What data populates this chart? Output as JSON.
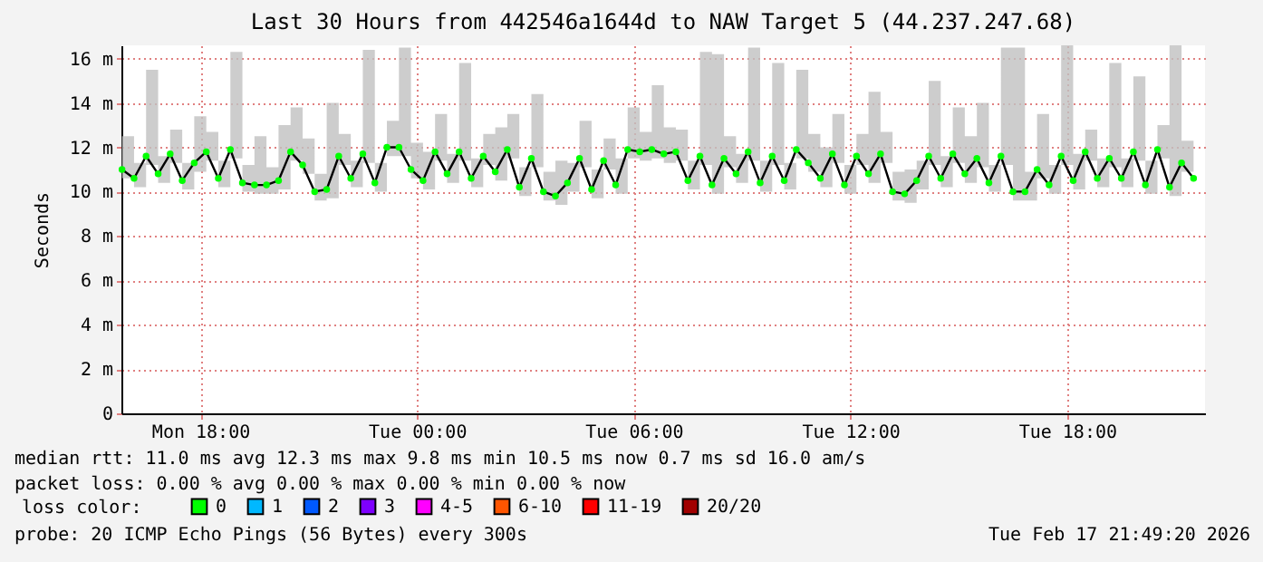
{
  "chart_data": {
    "type": "line",
    "title": "Last 30 Hours from 442546a1644d to NAW Target 5 (44.237.247.68)",
    "ylabel": "Seconds",
    "legend_title": "loss color:",
    "x": [
      "2026-02-16T15:50",
      "2026-02-16T16:10",
      "2026-02-16T16:30",
      "2026-02-16T16:50",
      "2026-02-16T17:10",
      "2026-02-16T17:30",
      "2026-02-16T17:50",
      "2026-02-16T18:10",
      "2026-02-16T18:30",
      "2026-02-16T18:50",
      "2026-02-16T19:10",
      "2026-02-16T19:30",
      "2026-02-16T19:50",
      "2026-02-16T20:10",
      "2026-02-16T20:30",
      "2026-02-16T20:50",
      "2026-02-16T21:10",
      "2026-02-16T21:30",
      "2026-02-16T21:50",
      "2026-02-16T22:10",
      "2026-02-16T22:30",
      "2026-02-16T22:50",
      "2026-02-16T23:10",
      "2026-02-16T23:30",
      "2026-02-16T23:50",
      "2026-02-17T00:10",
      "2026-02-17T00:30",
      "2026-02-17T00:50",
      "2026-02-17T01:10",
      "2026-02-17T01:30",
      "2026-02-17T01:50",
      "2026-02-17T02:10",
      "2026-02-17T02:30",
      "2026-02-17T02:50",
      "2026-02-17T03:10",
      "2026-02-17T03:30",
      "2026-02-17T03:50",
      "2026-02-17T04:10",
      "2026-02-17T04:30",
      "2026-02-17T04:50",
      "2026-02-17T05:10",
      "2026-02-17T05:30",
      "2026-02-17T05:50",
      "2026-02-17T06:10",
      "2026-02-17T06:30",
      "2026-02-17T06:50",
      "2026-02-17T07:10",
      "2026-02-17T07:30",
      "2026-02-17T07:50",
      "2026-02-17T08:10",
      "2026-02-17T08:30",
      "2026-02-17T08:50",
      "2026-02-17T09:10",
      "2026-02-17T09:30",
      "2026-02-17T09:50",
      "2026-02-17T10:10",
      "2026-02-17T10:30",
      "2026-02-17T10:50",
      "2026-02-17T11:10",
      "2026-02-17T11:30",
      "2026-02-17T11:50",
      "2026-02-17T12:10",
      "2026-02-17T12:30",
      "2026-02-17T12:50",
      "2026-02-17T13:10",
      "2026-02-17T13:30",
      "2026-02-17T13:50",
      "2026-02-17T14:10",
      "2026-02-17T14:30",
      "2026-02-17T14:50",
      "2026-02-17T15:10",
      "2026-02-17T15:30",
      "2026-02-17T15:50",
      "2026-02-17T16:10",
      "2026-02-17T16:30",
      "2026-02-17T16:50",
      "2026-02-17T17:10",
      "2026-02-17T17:30",
      "2026-02-17T17:50",
      "2026-02-17T18:10",
      "2026-02-17T18:30",
      "2026-02-17T18:50",
      "2026-02-17T19:10",
      "2026-02-17T19:30",
      "2026-02-17T19:50",
      "2026-02-17T20:10",
      "2026-02-17T20:30",
      "2026-02-17T20:50",
      "2026-02-17T21:10",
      "2026-02-17T21:30"
    ],
    "series": [
      {
        "color": "#000000",
        "marker": "none",
        "values": [
          11.0,
          10.6,
          11.6,
          10.8,
          11.7,
          10.5,
          11.3,
          11.8,
          10.6,
          11.9,
          10.4,
          10.3,
          10.3,
          10.5,
          11.8,
          11.2,
          10.0,
          10.1,
          11.6,
          10.6,
          11.7,
          10.4,
          12.0,
          12.0,
          11.0,
          10.5,
          11.8,
          10.8,
          11.8,
          10.6,
          11.6,
          10.9,
          11.9,
          10.2,
          11.5,
          10.0,
          9.8,
          10.4,
          11.5,
          10.1,
          11.4,
          10.3,
          11.9,
          11.8,
          11.9,
          11.7,
          11.8,
          10.5,
          11.6,
          10.3,
          11.5,
          10.8,
          11.8,
          10.4,
          11.6,
          10.5,
          11.9,
          11.3,
          10.6,
          11.7,
          10.3,
          11.6,
          10.8,
          11.7,
          10.0,
          9.9,
          10.5,
          11.6,
          10.6,
          11.7,
          10.8,
          11.5,
          10.4,
          11.6,
          10.0,
          10.0,
          11.0,
          10.3,
          11.6,
          10.5,
          11.8,
          10.6,
          11.5,
          10.6,
          11.8,
          10.3,
          11.9,
          10.2,
          11.3,
          10.6
        ],
        "lower": [
          10.6,
          10.2,
          11.2,
          10.4,
          11.3,
          10.1,
          10.9,
          11.4,
          10.2,
          11.5,
          10.0,
          9.9,
          9.9,
          10.1,
          11.4,
          10.8,
          9.6,
          9.7,
          11.2,
          10.2,
          11.3,
          10.0,
          11.6,
          11.6,
          10.6,
          10.1,
          11.4,
          10.4,
          11.4,
          10.2,
          11.2,
          10.5,
          11.5,
          9.8,
          11.1,
          9.6,
          9.4,
          10.0,
          11.1,
          9.7,
          11.0,
          9.9,
          11.5,
          11.4,
          11.5,
          11.3,
          11.4,
          10.1,
          11.2,
          9.9,
          11.1,
          10.4,
          11.4,
          10.0,
          11.2,
          10.1,
          11.5,
          10.9,
          10.2,
          11.3,
          9.9,
          11.2,
          10.4,
          11.3,
          9.6,
          9.5,
          10.1,
          11.2,
          10.2,
          11.3,
          10.4,
          11.1,
          10.0,
          11.2,
          9.6,
          9.6,
          10.6,
          9.9,
          11.2,
          10.1,
          11.4,
          10.2,
          11.1,
          10.2,
          11.4,
          9.9,
          11.5,
          9.8,
          10.9,
          10.2
        ],
        "upper": [
          12.5,
          11.3,
          15.5,
          11.6,
          12.8,
          11.3,
          13.4,
          12.7,
          11.4,
          16.3,
          11.2,
          12.5,
          11.1,
          13.0,
          13.8,
          12.4,
          10.8,
          14.0,
          12.6,
          11.4,
          16.4,
          11.3,
          13.2,
          16.5,
          12.2,
          11.8,
          13.5,
          11.7,
          15.8,
          11.5,
          12.6,
          12.9,
          13.5,
          11.1,
          14.4,
          10.9,
          11.4,
          11.3,
          13.2,
          11.0,
          12.4,
          11.5,
          13.8,
          12.7,
          14.8,
          12.9,
          12.8,
          11.4,
          16.3,
          16.2,
          12.5,
          11.7,
          16.5,
          11.4,
          15.8,
          11.3,
          15.5,
          12.6,
          12.0,
          13.5,
          11.2,
          12.6,
          14.5,
          12.7,
          10.9,
          11.0,
          11.4,
          15.0,
          11.6,
          13.8,
          12.5,
          14.0,
          11.2,
          16.5,
          16.5,
          10.9,
          13.5,
          11.2,
          16.6,
          11.7,
          12.8,
          11.5,
          15.8,
          11.5,
          15.2,
          11.4,
          13.0,
          16.6,
          12.3,
          11.5
        ]
      },
      {
        "type": "scatter",
        "name": "0",
        "color": "#00ff00",
        "values": [
          11.0,
          10.6,
          11.6,
          10.8,
          11.7,
          10.5,
          11.3,
          11.8,
          10.6,
          11.9,
          10.4,
          10.3,
          10.3,
          10.5,
          11.8,
          11.2,
          10.0,
          10.1,
          11.6,
          10.6,
          11.7,
          10.4,
          12.0,
          12.0,
          11.0,
          10.5,
          11.8,
          10.8,
          11.8,
          10.6,
          11.6,
          10.9,
          11.9,
          10.2,
          11.5,
          10.0,
          9.8,
          10.4,
          11.5,
          10.1,
          11.4,
          10.3,
          11.9,
          11.8,
          11.9,
          11.7,
          11.8,
          10.5,
          11.6,
          10.3,
          11.5,
          10.8,
          11.8,
          10.4,
          11.6,
          10.5,
          11.9,
          11.3,
          10.6,
          11.7,
          10.3,
          11.6,
          10.8,
          11.7,
          10.0,
          9.9,
          10.5,
          11.6,
          10.6,
          11.7,
          10.8,
          11.5,
          10.4,
          11.6,
          10.0,
          10.0,
          11.0,
          10.3,
          11.6,
          10.5,
          11.8,
          10.6,
          11.5,
          10.6,
          11.8,
          10.3,
          11.9,
          10.2,
          11.3,
          10.6
        ]
      },
      {
        "type": "scatter",
        "name": "1",
        "color": "#00b8ff",
        "values": [
          null,
          null,
          null,
          null,
          null,
          null,
          null,
          null,
          null,
          null,
          null,
          null,
          null,
          null,
          null,
          null,
          null,
          null,
          null,
          null,
          null,
          null,
          null,
          null,
          null,
          null,
          null,
          null,
          null,
          null,
          null,
          null,
          null,
          null,
          null,
          null,
          null,
          null,
          null,
          null,
          null,
          null,
          null,
          null,
          null,
          null,
          null,
          null,
          null,
          null,
          null,
          null,
          null,
          null,
          null,
          null,
          null,
          null,
          null,
          null,
          null,
          null,
          null,
          null,
          null,
          null,
          null,
          null,
          null,
          null,
          null,
          null,
          null,
          null,
          null,
          null,
          null,
          null,
          null,
          null,
          null,
          null,
          null,
          null,
          null,
          null,
          null,
          null,
          null,
          null
        ]
      },
      {
        "type": "scatter",
        "name": "2",
        "color": "#0059ff",
        "values": [
          null,
          null,
          null,
          null,
          null,
          null,
          null,
          null,
          null,
          null,
          null,
          null,
          null,
          null,
          null,
          null,
          null,
          null,
          null,
          null,
          null,
          null,
          null,
          null,
          null,
          null,
          null,
          null,
          null,
          null,
          null,
          null,
          null,
          null,
          null,
          null,
          null,
          null,
          null,
          null,
          null,
          null,
          null,
          null,
          null,
          null,
          null,
          null,
          null,
          null,
          null,
          null,
          null,
          null,
          null,
          null,
          null,
          null,
          null,
          null,
          null,
          null,
          null,
          null,
          null,
          null,
          null,
          null,
          null,
          null,
          null,
          null,
          null,
          null,
          null,
          null,
          null,
          null,
          null,
          null,
          null,
          null,
          null,
          null,
          null,
          null,
          null,
          null,
          null,
          null
        ]
      },
      {
        "type": "scatter",
        "name": "3",
        "color": "#7e00ff",
        "values": [
          null,
          null,
          null,
          null,
          null,
          null,
          null,
          null,
          null,
          null,
          null,
          null,
          null,
          null,
          null,
          null,
          null,
          null,
          null,
          null,
          null,
          null,
          null,
          null,
          null,
          null,
          null,
          null,
          null,
          null,
          null,
          null,
          null,
          null,
          null,
          null,
          null,
          null,
          null,
          null,
          null,
          null,
          null,
          null,
          null,
          null,
          null,
          null,
          null,
          null,
          null,
          null,
          null,
          null,
          null,
          null,
          null,
          null,
          null,
          null,
          null,
          null,
          null,
          null,
          null,
          null,
          null,
          null,
          null,
          null,
          null,
          null,
          null,
          null,
          null,
          null,
          null,
          null,
          null,
          null,
          null,
          null,
          null,
          null,
          null,
          null,
          null,
          null,
          null,
          null
        ]
      },
      {
        "type": "scatter",
        "name": "4-5",
        "color": "#ff00ff",
        "values": [
          null,
          null,
          null,
          null,
          null,
          null,
          null,
          null,
          null,
          null,
          null,
          null,
          null,
          null,
          null,
          null,
          null,
          null,
          null,
          null,
          null,
          null,
          null,
          null,
          null,
          null,
          null,
          null,
          null,
          null,
          null,
          null,
          null,
          null,
          null,
          null,
          null,
          null,
          null,
          null,
          null,
          null,
          null,
          null,
          null,
          null,
          null,
          null,
          null,
          null,
          null,
          null,
          null,
          null,
          null,
          null,
          null,
          null,
          null,
          null,
          null,
          null,
          null,
          null,
          null,
          null,
          null,
          null,
          null,
          null,
          null,
          null,
          null,
          null,
          null,
          null,
          null,
          null,
          null,
          null,
          null,
          null,
          null,
          null,
          null,
          null,
          null,
          null,
          null,
          null
        ]
      },
      {
        "type": "scatter",
        "name": "6-10",
        "color": "#ff5500",
        "values": [
          null,
          null,
          null,
          null,
          null,
          null,
          null,
          null,
          null,
          null,
          null,
          null,
          null,
          null,
          null,
          null,
          null,
          null,
          null,
          null,
          null,
          null,
          null,
          null,
          null,
          null,
          null,
          null,
          null,
          null,
          null,
          null,
          null,
          null,
          null,
          null,
          null,
          null,
          null,
          null,
          null,
          null,
          null,
          null,
          null,
          null,
          null,
          null,
          null,
          null,
          null,
          null,
          null,
          null,
          null,
          null,
          null,
          null,
          null,
          null,
          null,
          null,
          null,
          null,
          null,
          null,
          null,
          null,
          null,
          null,
          null,
          null,
          null,
          null,
          null,
          null,
          null,
          null,
          null,
          null,
          null,
          null,
          null,
          null,
          null,
          null,
          null,
          null,
          null,
          null
        ]
      },
      {
        "type": "scatter",
        "name": "11-19",
        "color": "#ff0000",
        "values": [
          null,
          null,
          null,
          null,
          null,
          null,
          null,
          null,
          null,
          null,
          null,
          null,
          null,
          null,
          null,
          null,
          null,
          null,
          null,
          null,
          null,
          null,
          null,
          null,
          null,
          null,
          null,
          null,
          null,
          null,
          null,
          null,
          null,
          null,
          null,
          null,
          null,
          null,
          null,
          null,
          null,
          null,
          null,
          null,
          null,
          null,
          null,
          null,
          null,
          null,
          null,
          null,
          null,
          null,
          null,
          null,
          null,
          null,
          null,
          null,
          null,
          null,
          null,
          null,
          null,
          null,
          null,
          null,
          null,
          null,
          null,
          null,
          null,
          null,
          null,
          null,
          null,
          null,
          null,
          null,
          null,
          null,
          null,
          null,
          null,
          null,
          null,
          null,
          null,
          null
        ]
      },
      {
        "type": "scatter",
        "name": "20/20",
        "color": "#a10000",
        "values": [
          null,
          null,
          null,
          null,
          null,
          null,
          null,
          null,
          null,
          null,
          null,
          null,
          null,
          null,
          null,
          null,
          null,
          null,
          null,
          null,
          null,
          null,
          null,
          null,
          null,
          null,
          null,
          null,
          null,
          null,
          null,
          null,
          null,
          null,
          null,
          null,
          null,
          null,
          null,
          null,
          null,
          null,
          null,
          null,
          null,
          null,
          null,
          null,
          null,
          null,
          null,
          null,
          null,
          null,
          null,
          null,
          null,
          null,
          null,
          null,
          null,
          null,
          null,
          null,
          null,
          null,
          null,
          null,
          null,
          null,
          null,
          null,
          null,
          null,
          null,
          null,
          null,
          null,
          null,
          null,
          null,
          null,
          null,
          null,
          null,
          null,
          null,
          null,
          null,
          null
        ]
      }
    ],
    "marker": "circle",
    "xlim": [
      "2026-02-16T15:49",
      "2026-02-17T21:49"
    ],
    "xticks": [
      {
        "value": "2026-02-16T18:00",
        "label": "Mon 18:00"
      },
      {
        "value": "2026-02-17T00:00",
        "label": "Tue 00:00"
      },
      {
        "value": "2026-02-17T06:00",
        "label": "Tue 06:00"
      },
      {
        "value": "2026-02-17T12:00",
        "label": "Tue 12:00"
      },
      {
        "value": "2026-02-17T18:00",
        "label": "Tue 18:00"
      }
    ],
    "ylim": [
      0,
      16.6
    ],
    "yticks": [
      0,
      {
        "value": 2,
        "label": "2 m"
      },
      {
        "value": 4,
        "label": "4 m"
      },
      {
        "value": 6,
        "label": "6 m"
      },
      {
        "value": 8,
        "label": "8 m"
      },
      {
        "value": 10,
        "label": "10 m"
      },
      {
        "value": 12,
        "label": "12 m"
      },
      {
        "value": 14,
        "label": "14 m"
      },
      {
        "value": 16,
        "label": "16 m"
      }
    ],
    "grid": true,
    "legend": "bottom",
    "annotations": [
      "median rtt:  11.0 ms avg  12.3 ms max   9.8 ms min  10.5 ms now   0.7 ms sd  16.0    am/s",
      "packet loss: 0.00 % avg  0.00 % max   0.00 % min   0.00 % now",
      "probe:       20 ICMP Echo Pings (56 Bytes) every 300s",
      "Tue Feb 17 21:49:20 2026"
    ]
  }
}
